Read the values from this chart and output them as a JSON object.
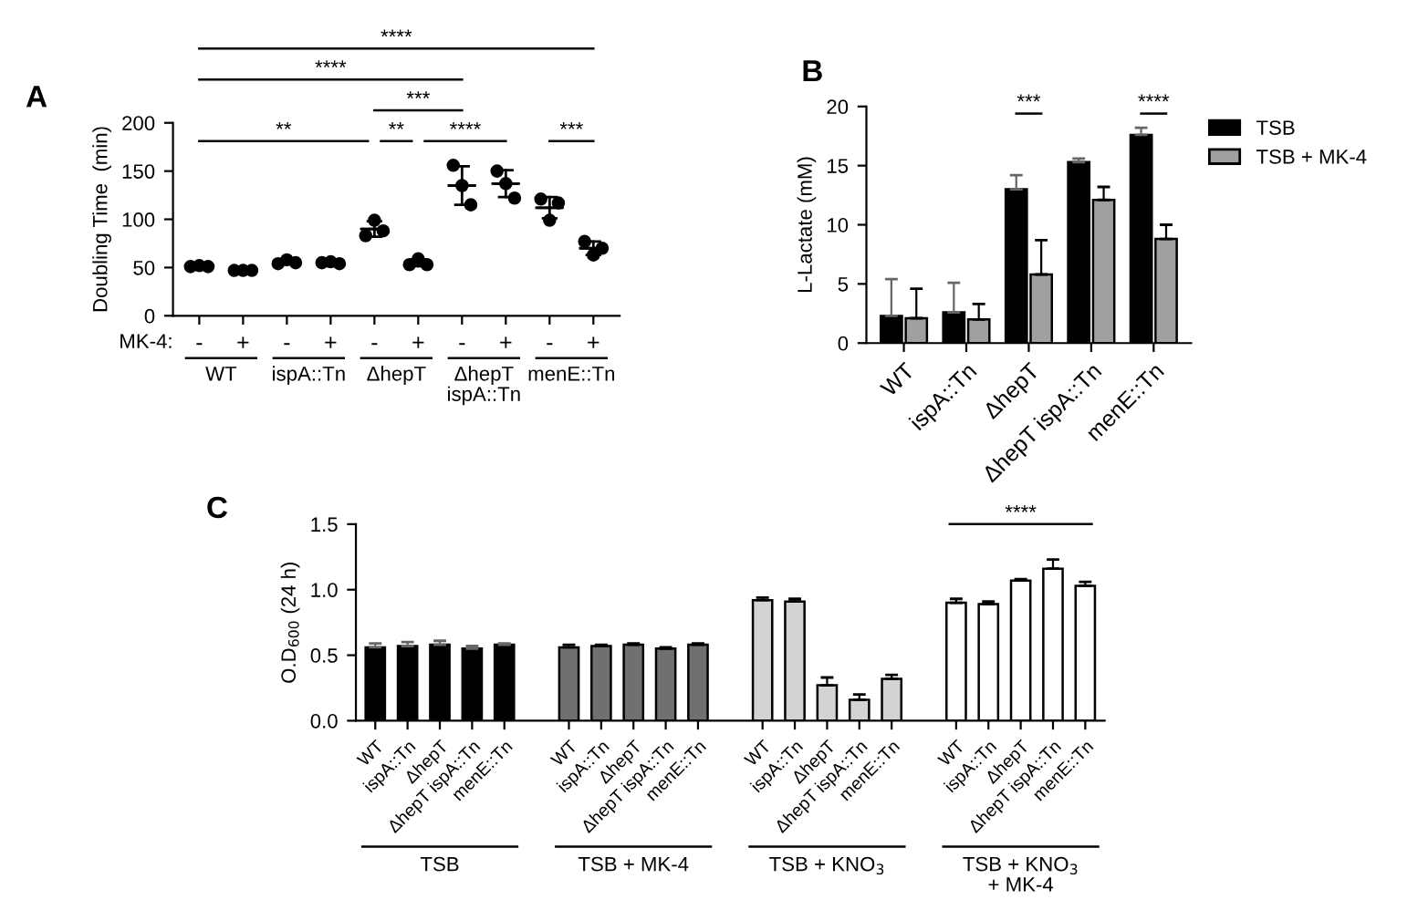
{
  "chart_data": [
    {
      "type": "scatter",
      "title": "A",
      "ylabel": "Doubling Time  (min)",
      "categories": [
        "-",
        "+",
        "-",
        "+",
        "-",
        "+",
        "-",
        "+",
        "-",
        "+"
      ],
      "ylim": [
        0,
        200
      ],
      "yticks": [
        0,
        50,
        100,
        150,
        200
      ],
      "marker": "circle",
      "series": [
        {
          "color": "#000000",
          "values": [
            51,
            47,
            54,
            55,
            83,
            53,
            156,
            150,
            121,
            77
          ]
        },
        {
          "color": "#000000",
          "values": [
            52,
            47,
            58,
            56,
            99,
            59,
            135,
            137,
            99,
            63
          ]
        },
        {
          "color": "#000000",
          "values": [
            51,
            47,
            55,
            54,
            88,
            53,
            115,
            122,
            117,
            70
          ]
        },
        {
          "type": "box",
          "color": "#000000",
          "boxes": [
            {
              "low": 50,
              "q1": 51,
              "median": 51,
              "q3": 51,
              "high": 52
            },
            {
              "low": 46.5,
              "q1": 47,
              "median": 47,
              "q3": 47,
              "high": 47.5
            },
            {
              "low": 54,
              "q1": 56,
              "median": 56,
              "q3": 56,
              "high": 58
            },
            {
              "low": 53.5,
              "q1": 55,
              "median": 55,
              "q3": 55,
              "high": 56.5
            },
            {
              "low": 82,
              "q1": 90,
              "median": 90,
              "q3": 90,
              "high": 98
            },
            {
              "low": 51.5,
              "q1": 55,
              "median": 55,
              "q3": 55,
              "high": 58.5
            },
            {
              "low": 115,
              "q1": 135,
              "median": 135,
              "q3": 135,
              "high": 155
            },
            {
              "low": 123,
              "q1": 137,
              "median": 137,
              "q3": 137,
              "high": 151
            },
            {
              "low": 101,
              "q1": 112,
              "median": 112,
              "q3": 112,
              "high": 123
            },
            {
              "low": 63,
              "q1": 70,
              "median": 70,
              "q3": 70,
              "high": 77
            }
          ]
        }
      ],
      "annotations": [
        "MK-4:",
        "WT",
        "ispA::Tn",
        "ΔhepT",
        "ΔhepT\nispA::Tn",
        "menE::Tn",
        "**",
        "**",
        "****",
        "***",
        "***",
        "****",
        "****"
      ]
    },
    {
      "type": "bar",
      "title": "B",
      "ylabel": "L-Lactate (mM)",
      "categories": [
        "WT",
        "ispA::Tn",
        "ΔhepT",
        "ΔhepT ispA::Tn",
        "menE::Tn"
      ],
      "ylim": [
        0,
        20
      ],
      "yticks": [
        0,
        5,
        10,
        15,
        20
      ],
      "legend": "right",
      "series": [
        {
          "name": "TSB",
          "color": "#000000",
          "values": [
            2.3,
            2.6,
            13.0,
            15.3,
            17.6
          ],
          "errors": [
            [
              2.3,
              5.4
            ],
            [
              2.6,
              5.1
            ],
            [
              13.0,
              14.2
            ],
            [
              15.3,
              15.6
            ],
            [
              17.6,
              18.2
            ]
          ]
        },
        {
          "name": "TSB + MK-4",
          "color": "#a0a0a0",
          "values": [
            2.1,
            2.0,
            5.8,
            12.1,
            8.8
          ],
          "errors": [
            [
              2.1,
              4.6
            ],
            [
              2.0,
              3.3
            ],
            [
              5.8,
              8.7
            ],
            [
              12.1,
              13.2
            ],
            [
              8.8,
              10.0
            ]
          ]
        }
      ],
      "annotations": [
        "***",
        "****"
      ]
    },
    {
      "type": "bar",
      "title": "C",
      "ylabel": "O.D$_{600}$ (24 h)",
      "categories": [
        "WT",
        "ispA::Tn",
        "ΔhepT",
        "ΔhepT ispA::Tn",
        "menE::Tn",
        null,
        "WT",
        "ispA::Tn",
        "ΔhepT",
        "ΔhepT ispA::Tn",
        "menE::Tn",
        null,
        "WT",
        "ispA::Tn",
        "ΔhepT",
        "ΔhepT ispA::Tn",
        "menE::Tn",
        null,
        "WT",
        "ispA::Tn",
        "ΔhepT",
        "ΔhepT ispA::Tn",
        "menE::Tn"
      ],
      "ylim": [
        0,
        1.5
      ],
      "yticks": [
        {
          "value": 0,
          "label": "0.0"
        },
        {
          "value": 0.5,
          "label": "0.5"
        },
        {
          "value": 1,
          "label": "1.0"
        },
        {
          "value": 1.5,
          "label": "1.5"
        }
      ],
      "values": [
        0.56,
        0.57,
        0.58,
        0.55,
        0.58,
        null,
        0.56,
        0.57,
        0.58,
        0.55,
        0.58,
        null,
        0.92,
        0.91,
        0.27,
        0.16,
        0.32,
        null,
        0.9,
        0.89,
        1.07,
        1.16,
        1.03
      ],
      "errors": [
        [
          0.56,
          0.59
        ],
        [
          0.57,
          0.6
        ],
        [
          0.58,
          0.61
        ],
        [
          0.55,
          0.57
        ],
        [
          0.58,
          0.59
        ],
        null,
        [
          0.56,
          0.58
        ],
        [
          0.57,
          0.58
        ],
        [
          0.58,
          0.59
        ],
        [
          0.55,
          0.56
        ],
        [
          0.58,
          0.59
        ],
        null,
        [
          0.92,
          0.94
        ],
        [
          0.91,
          0.93
        ],
        [
          0.27,
          0.33
        ],
        [
          0.16,
          0.2
        ],
        [
          0.32,
          0.35
        ],
        null,
        [
          0.9,
          0.93
        ],
        [
          0.89,
          0.91
        ],
        [
          1.07,
          1.08
        ],
        [
          1.16,
          1.23
        ],
        [
          1.03,
          1.06
        ]
      ],
      "colors": [
        "#000000",
        "#000000",
        "#000000",
        "#000000",
        "#000000",
        null,
        "#707070",
        "#707070",
        "#707070",
        "#707070",
        "#707070",
        null,
        "#d3d3d3",
        "#d3d3d3",
        "#d3d3d3",
        "#d3d3d3",
        "#d3d3d3",
        null,
        "#ffffff",
        "#ffffff",
        "#ffffff",
        "#ffffff",
        "#ffffff"
      ],
      "annotations": [
        "TSB",
        "TSB + MK-4",
        "TSB + KNO$_{3}$",
        "TSB + KNO$_{3}$\n+ MK-4",
        "****"
      ]
    }
  ]
}
